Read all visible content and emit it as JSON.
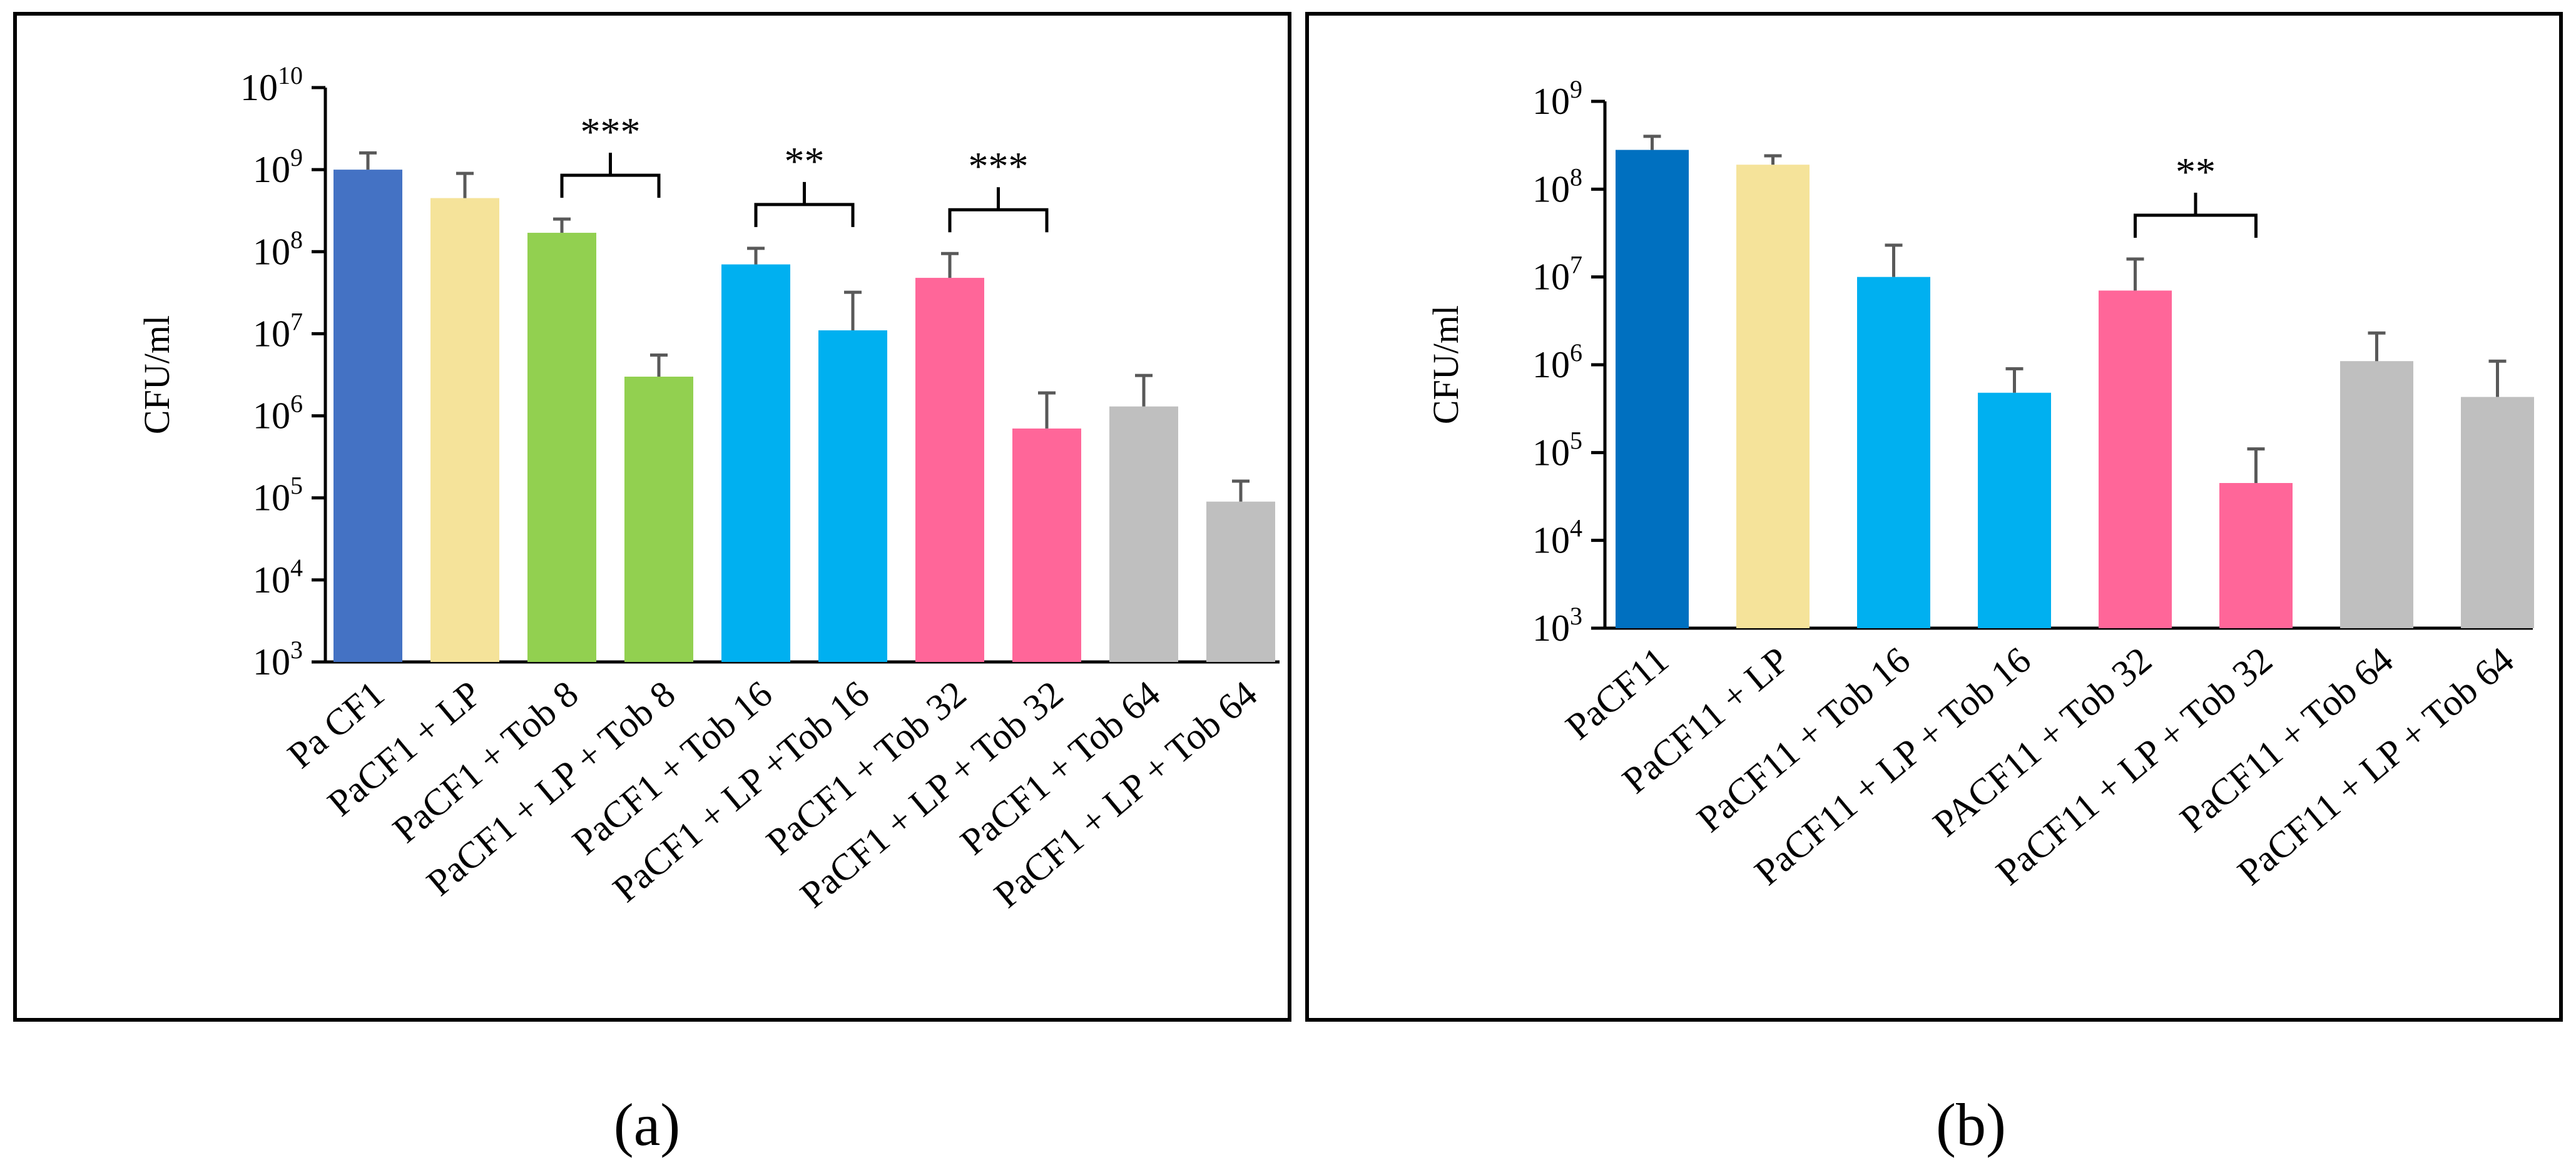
{
  "chart_data": [
    {
      "type": "bar",
      "panel_label": "(a)",
      "ylabel": "CFU/ml",
      "xlabel": "",
      "yscale": "log",
      "ylim": [
        1000,
        10000000000
      ],
      "y_ticks": [
        {
          "base": "10",
          "exp": "3"
        },
        {
          "base": "10",
          "exp": "4"
        },
        {
          "base": "10",
          "exp": "5"
        },
        {
          "base": "10",
          "exp": "6"
        },
        {
          "base": "10",
          "exp": "7"
        },
        {
          "base": "10",
          "exp": "8"
        },
        {
          "base": "10",
          "exp": "9"
        },
        {
          "base": "10",
          "exp": "10"
        }
      ],
      "categories": [
        "Pa CF1",
        "PaCF1 + LP",
        "PaCF1 + Tob 8",
        "PaCF1 + LP + Tob 8",
        "PaCF1 + Tob 16",
        "PaCF1 + LP +Tob 16",
        "PaCF1 + Tob 32",
        "PaCF1 + LP + Tob 32",
        "PaCF1 + Tob 64",
        "PaCF1 + LP + Tob 64"
      ],
      "values": [
        1000000000,
        450000000,
        170000000,
        3000000,
        70000000,
        11000000,
        48000000,
        700000,
        1300000,
        90000
      ],
      "error_upper": [
        1600000000,
        900000000,
        250000000,
        5500000,
        110000000,
        32000000,
        95000000,
        1900000,
        3100000,
        160000
      ],
      "colors": [
        "#4472c4",
        "#f5e39a",
        "#92d050",
        "#92d050",
        "#00b0f0",
        "#00b0f0",
        "#ff6699",
        "#ff6699",
        "#bfbfbf",
        "#bfbfbf"
      ],
      "significance": [
        {
          "from": 2,
          "to": 3,
          "label": "***"
        },
        {
          "from": 4,
          "to": 5,
          "label": "**"
        },
        {
          "from": 6,
          "to": 7,
          "label": "***"
        }
      ]
    },
    {
      "type": "bar",
      "panel_label": "(b)",
      "ylabel": "CFU/ml",
      "xlabel": "",
      "yscale": "log",
      "ylim": [
        1000,
        1000000000
      ],
      "y_ticks": [
        {
          "base": "10",
          "exp": "3"
        },
        {
          "base": "10",
          "exp": "4"
        },
        {
          "base": "10",
          "exp": "5"
        },
        {
          "base": "10",
          "exp": "6"
        },
        {
          "base": "10",
          "exp": "7"
        },
        {
          "base": "10",
          "exp": "8"
        },
        {
          "base": "10",
          "exp": "9"
        }
      ],
      "categories": [
        "PaCF11",
        "PaCF11 + LP",
        "PaCF11 + Tob 16",
        "PaCF11 + LP + Tob 16",
        "PACF11 + Tob 32",
        "PaCF11 + LP + Tob 32",
        "PaCF11 + Tob 64",
        "PaCF11 + LP + Tob 64"
      ],
      "values": [
        280000000,
        190000000,
        10000000,
        480000,
        7000000,
        45000,
        1100000,
        430000
      ],
      "error_upper": [
        400000000,
        240000000,
        23000000,
        900000,
        16000000,
        110000,
        2300000,
        1100000
      ],
      "colors": [
        "#0070c0",
        "#f5e39a",
        "#00b0f0",
        "#00b0f0",
        "#ff6699",
        "#ff6699",
        "#bfbfbf",
        "#bfbfbf"
      ],
      "significance": [
        {
          "from": 4,
          "to": 5,
          "label": "**"
        }
      ]
    }
  ]
}
